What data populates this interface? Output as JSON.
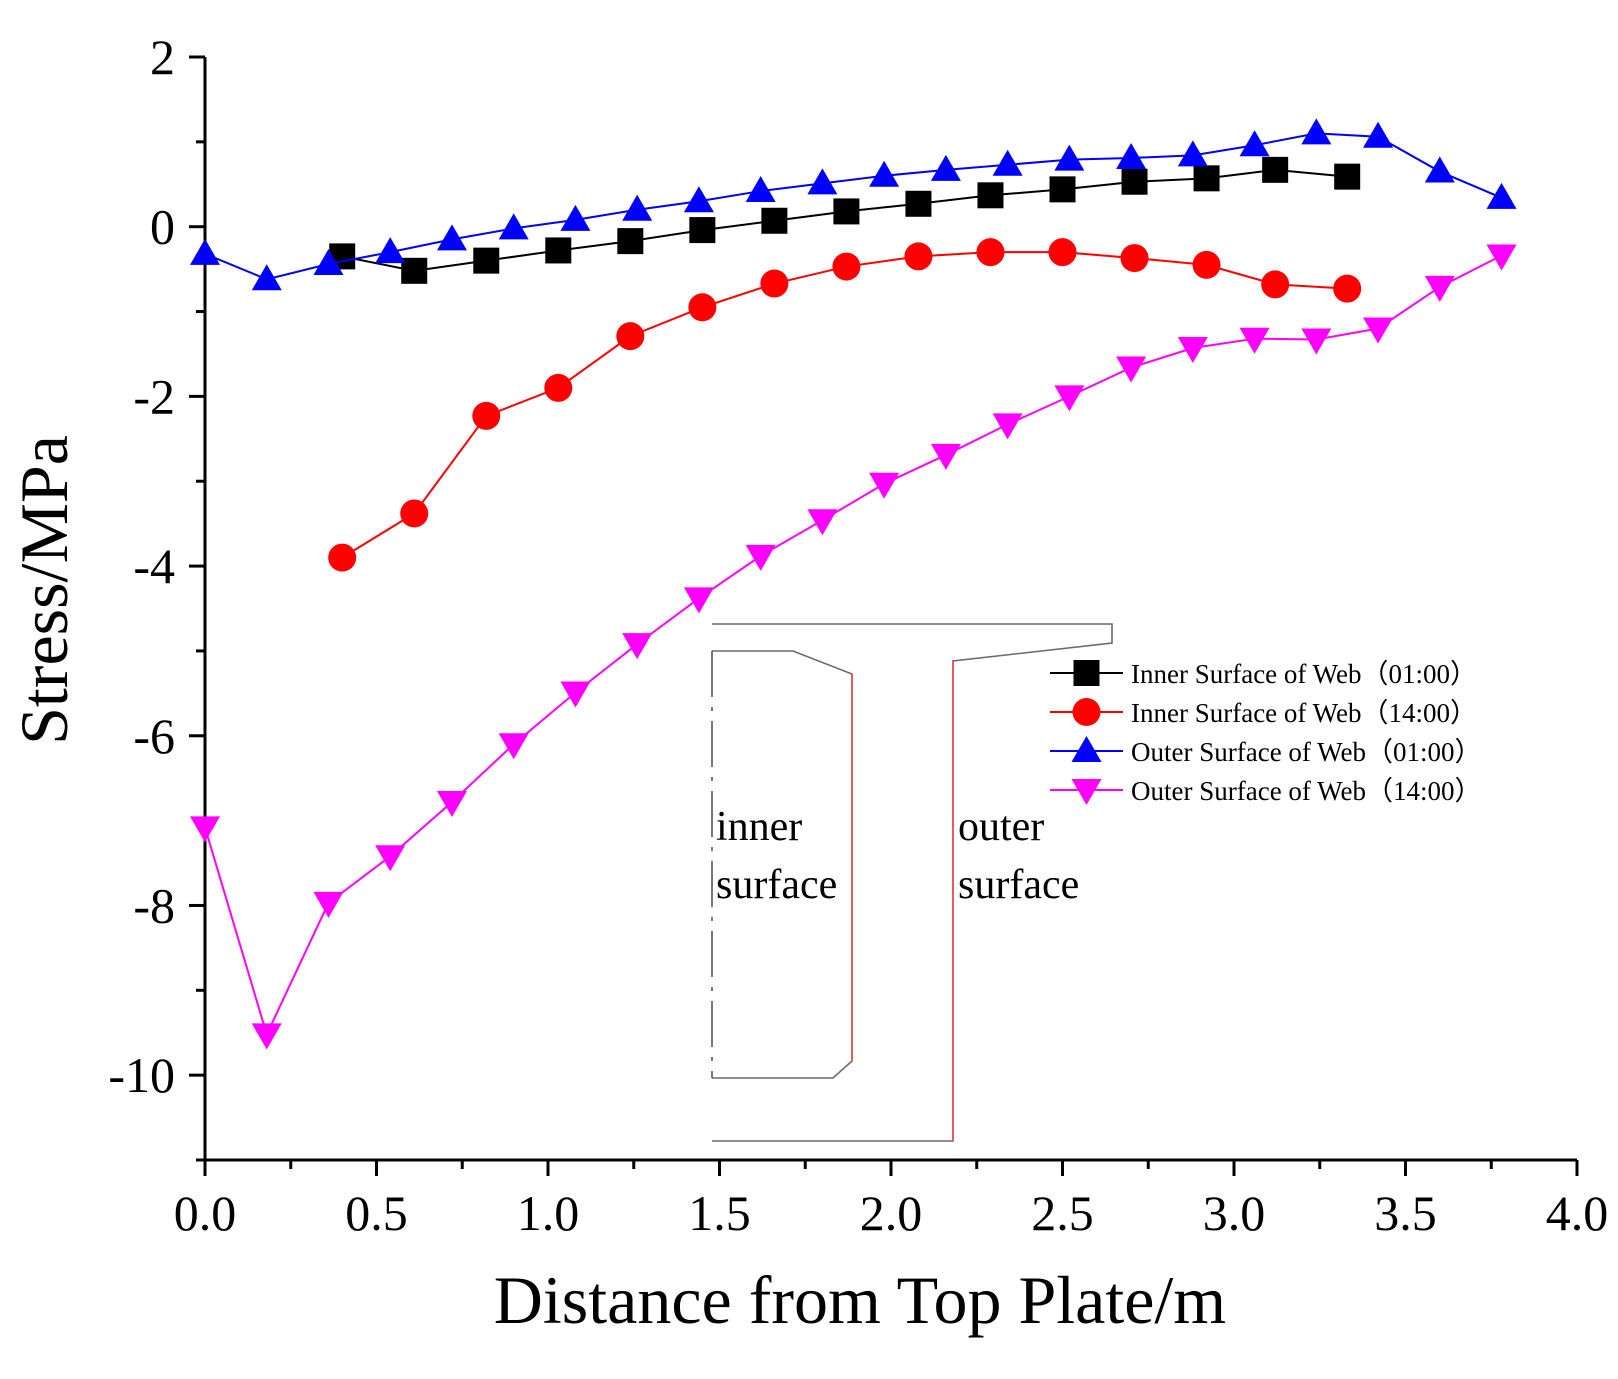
{
  "chart_data": {
    "type": "line",
    "title": "",
    "xlabel": "Distance from Top Plate/m",
    "ylabel": "Stress/MPa",
    "xlim": [
      0,
      4.0
    ],
    "ylim": [
      -11,
      2
    ],
    "xticks": [
      "0.0",
      "0.5",
      "1.0",
      "1.5",
      "2.0",
      "2.5",
      "3.0",
      "3.5",
      "4.0"
    ],
    "yticks": [
      "2",
      "0",
      "-2",
      "-4",
      "-6",
      "-8",
      "-10"
    ],
    "legend_position": "center-right",
    "grid": false,
    "series": [
      {
        "name": "Inner Surface of Web（01:00）",
        "color": "#000000",
        "marker": "square",
        "x": [
          0.4,
          0.61,
          0.82,
          1.03,
          1.24,
          1.45,
          1.66,
          1.87,
          2.08,
          2.29,
          2.5,
          2.71,
          2.92,
          3.12,
          3.33
        ],
        "y": [
          -0.35,
          -0.52,
          -0.4,
          -0.28,
          -0.17,
          -0.04,
          0.07,
          0.18,
          0.27,
          0.37,
          0.44,
          0.53,
          0.57,
          0.67,
          0.59
        ]
      },
      {
        "name": "Inner Surface of Web（14:00）",
        "color": "#ff0000",
        "marker": "circle",
        "x": [
          0.4,
          0.61,
          0.82,
          1.03,
          1.24,
          1.45,
          1.66,
          1.87,
          2.08,
          2.29,
          2.5,
          2.71,
          2.92,
          3.12,
          3.33
        ],
        "y": [
          -3.9,
          -3.38,
          -2.23,
          -1.9,
          -1.29,
          -0.95,
          -0.67,
          -0.47,
          -0.35,
          -0.3,
          -0.3,
          -0.37,
          -0.45,
          -0.68,
          -0.73
        ]
      },
      {
        "name": "Outer Surface of Web（01:00）",
        "color": "#0000ff",
        "marker": "triangle-up",
        "x": [
          0.0,
          0.18,
          0.36,
          0.54,
          0.72,
          0.9,
          1.08,
          1.26,
          1.44,
          1.62,
          1.8,
          1.98,
          2.16,
          2.34,
          2.52,
          2.7,
          2.88,
          3.06,
          3.24,
          3.42,
          3.6,
          3.78
        ],
        "y": [
          -0.32,
          -0.62,
          -0.44,
          -0.3,
          -0.15,
          -0.02,
          0.08,
          0.2,
          0.3,
          0.42,
          0.51,
          0.6,
          0.67,
          0.73,
          0.79,
          0.81,
          0.84,
          0.96,
          1.1,
          1.06,
          0.65,
          0.34
        ]
      },
      {
        "name": "Outer Surface of Web（14:00）",
        "color": "#ff00ff",
        "marker": "triangle-down",
        "x": [
          0.0,
          0.18,
          0.36,
          0.54,
          0.72,
          0.9,
          1.08,
          1.26,
          1.44,
          1.62,
          1.8,
          1.98,
          2.16,
          2.34,
          2.52,
          2.7,
          2.88,
          3.06,
          3.24,
          3.42,
          3.6,
          3.78
        ],
        "y": [
          -7.08,
          -9.52,
          -7.97,
          -7.42,
          -6.78,
          -6.1,
          -5.49,
          -4.92,
          -4.38,
          -3.88,
          -3.46,
          -3.03,
          -2.69,
          -2.33,
          -2.0,
          -1.66,
          -1.43,
          -1.32,
          -1.33,
          -1.2,
          -0.71,
          -0.34
        ]
      }
    ],
    "annotations": {
      "inner_label_line1": "inner",
      "inner_label_line2": "surface",
      "outer_label_line1": "outer",
      "outer_label_line2": "surface"
    }
  }
}
